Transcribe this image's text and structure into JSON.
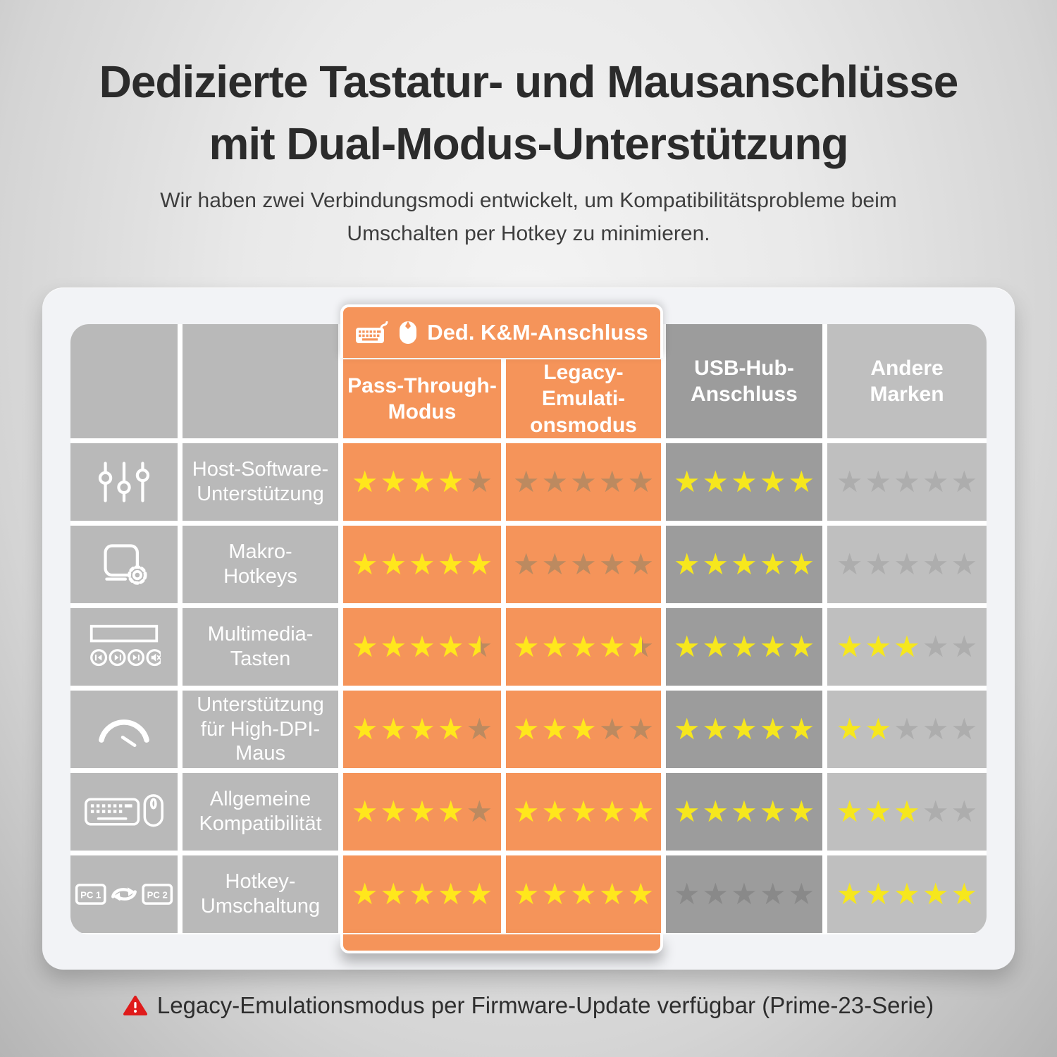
{
  "header": {
    "title_line1": "Dedizierte Tastatur- und Mausanschlüsse",
    "title_line2": "mit Dual-Modus-Unterstützung",
    "subtitle": "Wir haben zwei Verbindungsmodi entwickelt, um Kompatibilitätsprobleme beim\nUmschalten per Hotkey zu minimieren."
  },
  "table": {
    "group_header": "Ded. K&M-Anschluss",
    "col_headers": {
      "pass": "Pass-Through-\nModus",
      "legacy": "Legacy-\nEmulati-\nonsmodus",
      "usb": "USB-Hub-\nAnschluss",
      "andere": "Andere\nMarken"
    },
    "rows": [
      {
        "icon": "sliders-icon",
        "label": "Host-Software-\nUnterstützung"
      },
      {
        "icon": "macro-icon",
        "label": "Makro-\nHotkeys"
      },
      {
        "icon": "multimedia-icon",
        "label": "Multimedia-\nTasten"
      },
      {
        "icon": "gauge-icon",
        "label": "Unterstützung\nfür High-DPI-\nMaus"
      },
      {
        "icon": "keyboard-mouse-icon",
        "label": "Allgemeine\nKompatibilität"
      },
      {
        "icon": "pc-switch-icon",
        "label": "Hotkey-\nUmschaltung"
      }
    ]
  },
  "chart_data": {
    "type": "table",
    "title": "Dedizierte Tastatur- und Mausanschlüsse mit Dual-Modus-Unterstützung",
    "column_group": {
      "label": "Ded. K&M-Anschluss",
      "spans": [
        "Pass-Through-Modus",
        "Legacy-Emulationsmodus"
      ]
    },
    "columns": [
      "Pass-Through-Modus",
      "Legacy-Emulationsmodus",
      "USB-Hub-Anschluss",
      "Andere Marken"
    ],
    "row_labels": [
      "Host-Software-Unterstützung",
      "Makro-Hotkeys",
      "Multimedia-Tasten",
      "Unterstützung für High-DPI-Maus",
      "Allgemeine Kompatibilität",
      "Hotkey-Umschaltung"
    ],
    "scale": "Sterne von 0 bis 5",
    "ratings": [
      [
        4,
        0,
        5,
        0
      ],
      [
        5,
        0,
        5,
        0
      ],
      [
        4.5,
        4.5,
        5,
        3
      ],
      [
        4,
        3,
        5,
        2
      ],
      [
        4,
        5,
        5,
        3
      ],
      [
        5,
        5,
        0,
        5
      ]
    ]
  },
  "footnote": {
    "text": "Legacy-Emulationsmodus per Firmware-Update verfügbar (Prime-23-Serie)"
  },
  "colors": {
    "accent_orange": "#f5945a",
    "star_yellow": "#ffe71c",
    "star_dim_on_orange": "#bc8a60",
    "star_dim_on_dark_gray": "#898989",
    "star_dim_on_light_gray": "#adadad",
    "column_dark_gray": "#9c9c9c",
    "column_light_gray": "#bfbfbf",
    "row_label_gray": "#b9b9b9",
    "warning_red": "#df1b1b"
  }
}
